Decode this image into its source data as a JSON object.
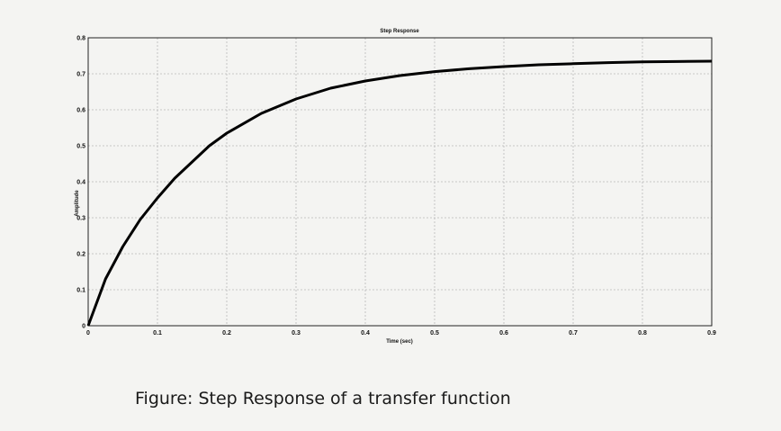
{
  "chart_data": {
    "type": "line",
    "title": "Step Response",
    "xlabel": "Time (sec)",
    "ylabel": "Amplitude",
    "xlim": [
      0,
      0.9
    ],
    "ylim": [
      0,
      0.8
    ],
    "xticks": [
      0,
      0.1,
      0.2,
      0.3,
      0.4,
      0.5,
      0.6,
      0.7,
      0.8,
      0.9
    ],
    "xtick_labels": [
      "0",
      "0.1",
      "0.2",
      "0.3",
      "0.4",
      "0.5",
      "0.6",
      "0.7",
      "0.8",
      "0.9"
    ],
    "yticks": [
      0,
      0.1,
      0.2,
      0.3,
      0.4,
      0.5,
      0.6,
      0.7,
      0.8
    ],
    "ytick_labels": [
      "0",
      "0.1",
      "0.2",
      "0.3",
      "0.4",
      "0.5",
      "0.6",
      "0.7",
      "0.8"
    ],
    "grid": true,
    "series": [
      {
        "color": "#000000",
        "x": [
          0,
          0.025,
          0.05,
          0.075,
          0.1,
          0.125,
          0.15,
          0.175,
          0.2,
          0.25,
          0.3,
          0.35,
          0.4,
          0.45,
          0.5,
          0.55,
          0.6,
          0.65,
          0.7,
          0.75,
          0.8,
          0.85,
          0.9
        ],
        "y": [
          0,
          0.13,
          0.22,
          0.295,
          0.355,
          0.41,
          0.455,
          0.5,
          0.535,
          0.59,
          0.63,
          0.66,
          0.68,
          0.695,
          0.706,
          0.714,
          0.72,
          0.725,
          0.728,
          0.731,
          0.733,
          0.734,
          0.735
        ]
      }
    ]
  },
  "caption": "Figure: Step Response of a transfer function"
}
